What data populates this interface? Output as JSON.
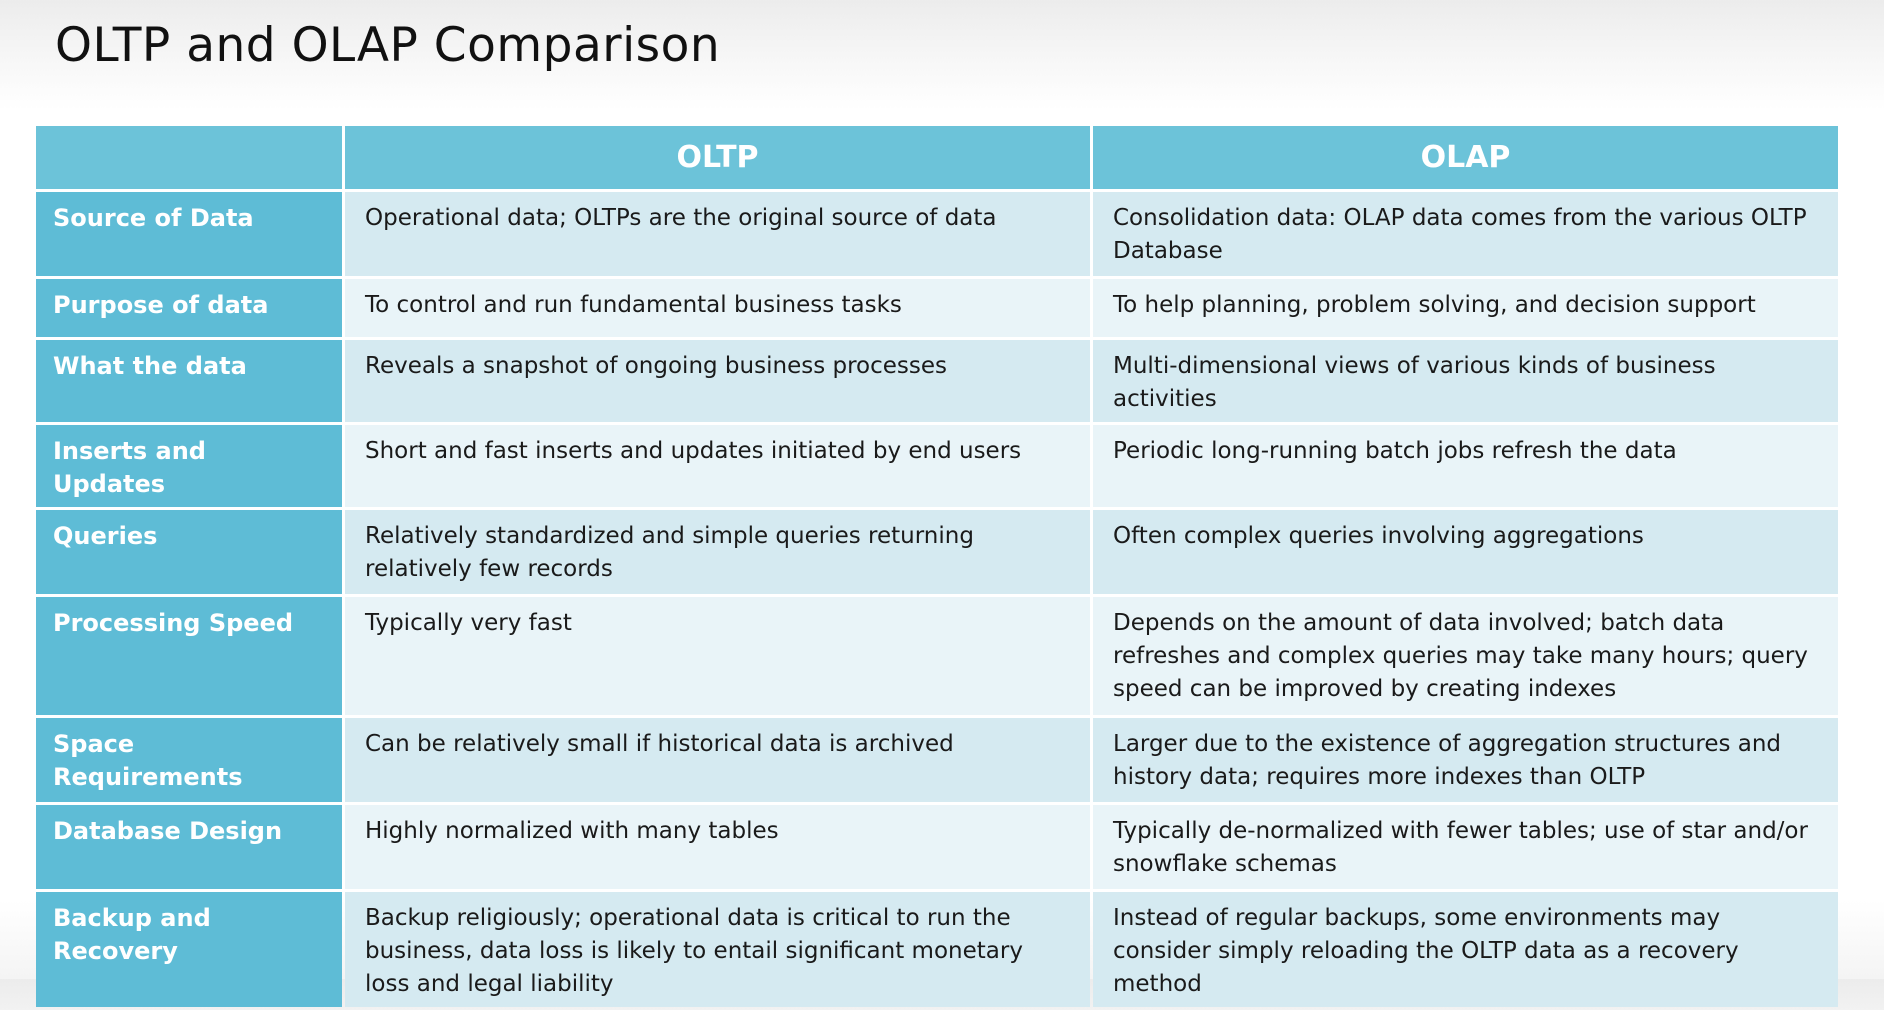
{
  "title": "OLTP and OLAP Comparison",
  "table": {
    "columns": [
      "",
      "OLTP",
      "OLAP"
    ],
    "rows": [
      {
        "label": "Source of Data",
        "oltp": "Operational data; OLTPs are the original source of data",
        "olap": "Consolidation data: OLAP data comes from the various OLTP Database"
      },
      {
        "label": "Purpose of data",
        "oltp": "To control and run fundamental business tasks",
        "olap": "To help planning, problem solving, and decision support"
      },
      {
        "label": "What the data",
        "oltp": "Reveals a snapshot of ongoing business processes",
        "olap": "Multi-dimensional views of various kinds of business activities"
      },
      {
        "label": "Inserts and Updates",
        "oltp": "Short and fast inserts and updates initiated by end users",
        "olap": "Periodic long-running batch jobs refresh the data"
      },
      {
        "label": "Queries",
        "oltp": "Relatively standardized and simple queries returning relatively few records",
        "olap": "Often complex queries involving aggregations"
      },
      {
        "label": "Processing Speed",
        "oltp": "Typically very fast",
        "olap": "Depends on the amount of data involved; batch data refreshes and complex queries may take many hours; query speed can be improved by  creating indexes"
      },
      {
        "label": "Space Requirements",
        "oltp": "Can be relatively small if historical data is archived",
        "olap": "Larger due to the existence of aggregation structures and history data; requires more indexes than OLTP"
      },
      {
        "label": "Database Design",
        "oltp": "Highly normalized with many tables",
        "olap": "Typically de-normalized with fewer tables; use of star and/or snowflake schemas"
      },
      {
        "label": "Backup and Recovery",
        "oltp": "Backup religiously; operational data is critical to run the business, data loss is likely to entail significant monetary loss and legal liability",
        "olap": "Instead of regular backups, some environments may consider simply reloading the OLTP data as a recovery method"
      }
    ]
  }
}
